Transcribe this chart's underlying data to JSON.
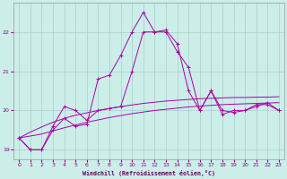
{
  "xlabel": "Windchill (Refroidissement éolien,°C)",
  "background_color": "#cceee8",
  "grid_color": "#aacccc",
  "line_color": "#aa00aa",
  "xlim": [
    -0.5,
    23.5
  ],
  "ylim": [
    18.75,
    22.75
  ],
  "yticks": [
    19,
    20,
    21,
    22
  ],
  "x": [
    0,
    1,
    2,
    3,
    4,
    5,
    6,
    7,
    8,
    9,
    10,
    11,
    12,
    13,
    14,
    15,
    16,
    17,
    18,
    19,
    20,
    21,
    22,
    23
  ],
  "line1": [
    19.3,
    19.0,
    19.0,
    19.6,
    20.1,
    20.0,
    19.75,
    20.0,
    20.05,
    20.1,
    21.0,
    22.0,
    22.0,
    22.0,
    21.5,
    21.1,
    20.0,
    20.5,
    20.0,
    19.95,
    20.0,
    20.1,
    20.2,
    20.0
  ],
  "line2": [
    19.3,
    19.0,
    19.0,
    19.5,
    19.8,
    19.6,
    19.65,
    20.8,
    20.9,
    21.4,
    22.0,
    22.5,
    22.0,
    22.05,
    21.7,
    20.5,
    20.0,
    20.5,
    19.9,
    20.0,
    20.0,
    20.15,
    20.15,
    20.0
  ],
  "smooth1": [
    19.3,
    19.35,
    19.4,
    19.48,
    19.56,
    19.63,
    19.7,
    19.76,
    19.82,
    19.87,
    19.92,
    19.96,
    20.0,
    20.03,
    20.06,
    20.09,
    20.11,
    20.13,
    20.15,
    20.16,
    20.17,
    20.18,
    20.19,
    20.2
  ],
  "smooth2": [
    19.3,
    19.45,
    19.58,
    19.7,
    19.8,
    19.88,
    19.94,
    20.0,
    20.05,
    20.1,
    20.14,
    20.18,
    20.21,
    20.24,
    20.26,
    20.28,
    20.3,
    20.31,
    20.32,
    20.33,
    20.33,
    20.34,
    20.34,
    20.35
  ]
}
